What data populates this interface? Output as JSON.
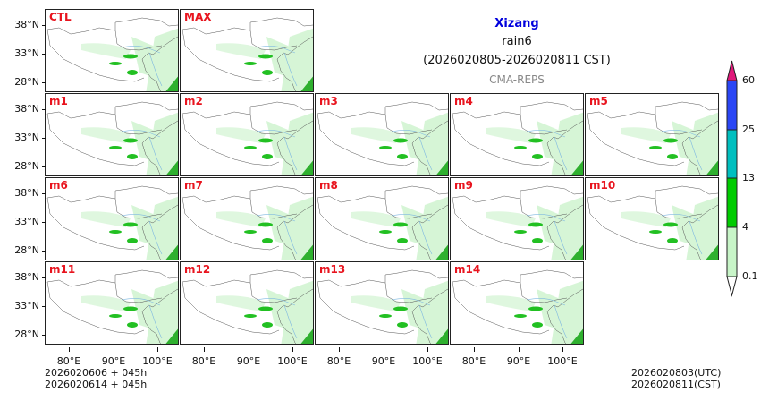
{
  "title": {
    "region": "Xizang",
    "variable": "rain6",
    "period": "(2026020805-2026020811 CST)",
    "source": "CMA-REPS"
  },
  "panels": [
    "CTL",
    "MAX",
    "m1",
    "m2",
    "m3",
    "m4",
    "m5",
    "m6",
    "m7",
    "m8",
    "m9",
    "m10",
    "m11",
    "m12",
    "m13",
    "m14"
  ],
  "y_ticks": [
    "38°N",
    "33°N",
    "28°N"
  ],
  "x_ticks": [
    "80°E",
    "90°E",
    "100°E"
  ],
  "footer": {
    "left_line1": "2026020606  +  045h",
    "left_line2": "2026020614  +  045h",
    "right_line1": "2026020803(UTC)",
    "right_line2": "2026020811(CST)"
  },
  "colorbar": {
    "levels": [
      "0.1",
      "4",
      "13",
      "25",
      "60"
    ],
    "colors": [
      "#ffffff",
      "#c8f5c8",
      "#00cc00",
      "#00bfbf",
      "#2a46f5",
      "#e0197a"
    ]
  },
  "colors": {
    "title": "#0000dd",
    "label": "#e8141e",
    "source": "#888888"
  }
}
